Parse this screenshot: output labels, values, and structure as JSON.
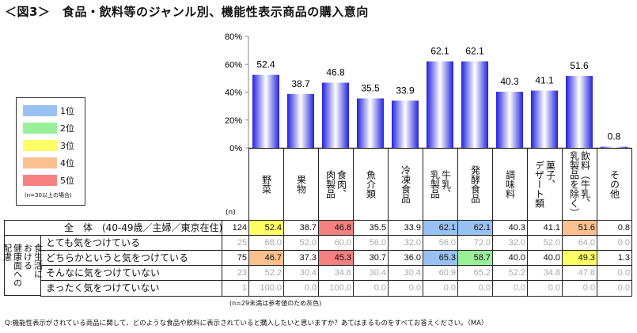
{
  "title": "＜図3＞　食品・飲料等のジャンル別、機能性表示商品の購入意向",
  "legend": {
    "items": [
      {
        "label": "1位",
        "color": "#99c2f2"
      },
      {
        "label": "2位",
        "color": "#99f09a"
      },
      {
        "label": "3位",
        "color": "#ffff66"
      },
      {
        "label": "4位",
        "color": "#fbc08f"
      },
      {
        "label": "5位",
        "color": "#f68080"
      }
    ],
    "note": "(n=30以上の場合)"
  },
  "chart_data": {
    "type": "bar",
    "categories": [
      "野菜",
      "果物",
      "食肉、\n肉製品",
      "魚介類",
      "冷凍食品",
      "牛乳、\n乳製品",
      "発酵食品",
      "調味料",
      "菓子、\nデザート類",
      "飲料（牛乳、\n乳製品を除く）",
      "その他"
    ],
    "values": [
      52.4,
      38.7,
      46.8,
      35.5,
      33.9,
      62.1,
      62.1,
      40.3,
      41.1,
      51.6,
      0.8
    ],
    "yticks": [
      "0%",
      "20%",
      "40%",
      "60%",
      "80%"
    ],
    "ylim": [
      0,
      80
    ],
    "bar_color": "#2222dd"
  },
  "table": {
    "n_header": "(n)",
    "side_label": "食生活に\nおける\n健康面への\n配慮",
    "rows": [
      {
        "label": "全　体　(40-49歳／主婦／東京在住)",
        "n": "124",
        "grey": false,
        "values": [
          "52.4",
          "38.7",
          "46.8",
          "35.5",
          "33.9",
          "62.1",
          "62.1",
          "40.3",
          "41.1",
          "51.6",
          "0.8"
        ],
        "ranks": [
          3,
          0,
          5,
          0,
          0,
          1,
          1,
          0,
          0,
          4,
          0
        ]
      },
      {
        "label": "とても気をつけている",
        "n": "25",
        "grey": true,
        "values": [
          "68.0",
          "52.0",
          "60.0",
          "56.0",
          "32.0",
          "56.0",
          "72.0",
          "32.0",
          "52.0",
          "64.0",
          "0.0"
        ],
        "ranks": [
          0,
          0,
          0,
          0,
          0,
          0,
          0,
          0,
          0,
          0,
          0
        ]
      },
      {
        "label": "どちらかというと気をつけている",
        "n": "75",
        "grey": false,
        "values": [
          "46.7",
          "37.3",
          "45.3",
          "30.7",
          "36.0",
          "65.3",
          "58.7",
          "40.0",
          "40.0",
          "49.3",
          "1.3"
        ],
        "ranks": [
          4,
          0,
          5,
          0,
          0,
          1,
          2,
          0,
          0,
          3,
          0
        ]
      },
      {
        "label": "そんなに気をつけていない",
        "n": "23",
        "grey": true,
        "values": [
          "52.2",
          "30.4",
          "34.8",
          "30.4",
          "30.4",
          "60.9",
          "65.2",
          "52.2",
          "34.8",
          "47.8",
          "0.0"
        ],
        "ranks": [
          0,
          0,
          0,
          0,
          0,
          0,
          0,
          0,
          0,
          0,
          0
        ]
      },
      {
        "label": "まったく気をつけていない",
        "n": "1",
        "grey": true,
        "values": [
          "100.0",
          "0.0",
          "100.0",
          "0.0",
          "0.0",
          "0.0",
          "0.0",
          "0.0",
          "0.0",
          "0.0",
          "0.0"
        ],
        "ranks": [
          0,
          0,
          0,
          0,
          0,
          0,
          0,
          0,
          0,
          0,
          0
        ]
      }
    ]
  },
  "notes": {
    "grey_note": "(n=29未満は参考値のため灰色)",
    "question": "Q:機能性表示がされている商品に関して、どのような食品や飲料に表示されていると購入したいと思いますか？あてはまるものをすべてお答えください。（MA）"
  }
}
